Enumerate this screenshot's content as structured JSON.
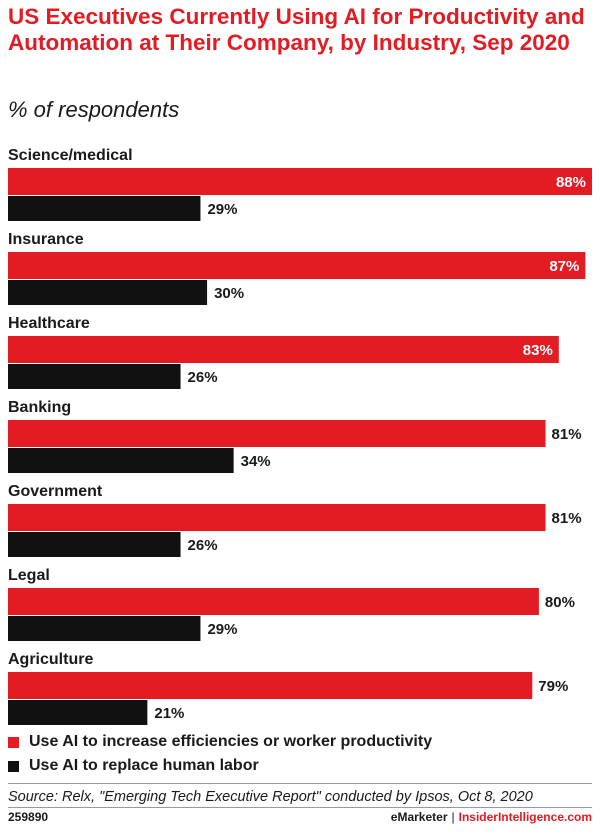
{
  "title": "US Executives Currently Using AI for Productivity and Automation at Their Company, by Industry, Sep 2020",
  "subtitle": "% of respondents",
  "chart_data": {
    "type": "bar",
    "orientation": "horizontal",
    "categories": [
      "Science/medical",
      "Insurance",
      "Healthcare",
      "Banking",
      "Government",
      "Legal",
      "Agriculture"
    ],
    "series": [
      {
        "name": "Use AI to increase efficiencies or worker productivity",
        "color": "#e31b23",
        "values": [
          88,
          87,
          83,
          81,
          81,
          80,
          79
        ]
      },
      {
        "name": "Use AI to replace human labor",
        "color": "#111111",
        "values": [
          29,
          30,
          26,
          34,
          26,
          29,
          21
        ]
      }
    ],
    "value_suffix": "%",
    "xlim": [
      0,
      88
    ]
  },
  "legend": {
    "item1": "Use AI to increase efficiencies or worker productivity",
    "item2": "Use AI to replace human labor",
    "color1": "#e31b23",
    "color2": "#111111"
  },
  "source": "Source: Relx, \"Emerging Tech Executive Report\" conducted by Ipsos, Oct 8, 2020",
  "footer": {
    "id": "259890",
    "brand1": "eMarketer",
    "sep": "|",
    "brand2": "InsiderIntelligence.com"
  }
}
